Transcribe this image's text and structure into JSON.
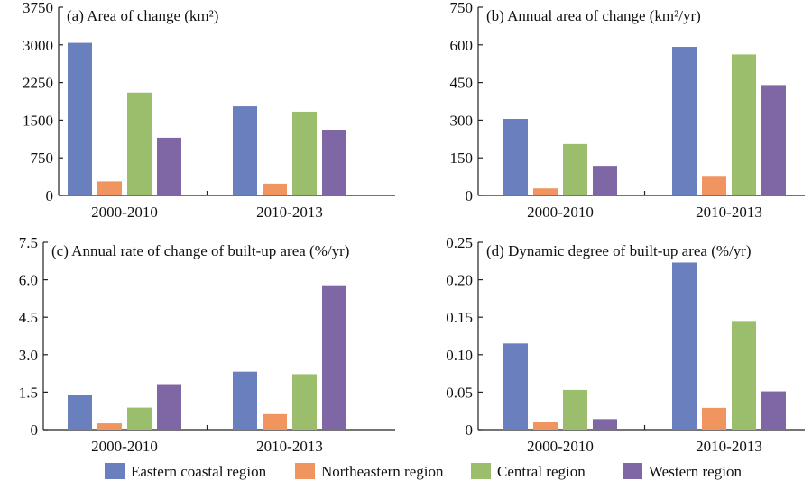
{
  "legend": {
    "placement": "bottom",
    "items": [
      {
        "label": "Eastern coastal region",
        "color": "#6a7fbe"
      },
      {
        "label": "Northeastern region",
        "color": "#f0955f"
      },
      {
        "label": "Central region",
        "color": "#9bbe6c"
      },
      {
        "label": "Western region",
        "color": "#7f66a4"
      }
    ]
  },
  "chart_data": [
    {
      "type": "bar",
      "title": "(a) Area of change (km²)",
      "categories": [
        "2000-2010",
        "2010-2013"
      ],
      "ylim": [
        0,
        3750
      ],
      "yticks": [
        0,
        750,
        1500,
        2250,
        3000,
        3750
      ],
      "ytick_labels": [
        "0",
        "750",
        "1500",
        "2250",
        "3000",
        "3750"
      ],
      "series": [
        {
          "name": "Eastern coastal region",
          "values": [
            3040,
            1775
          ]
        },
        {
          "name": "Northeastern region",
          "values": [
            280,
            235
          ]
        },
        {
          "name": "Central region",
          "values": [
            2050,
            1670
          ]
        },
        {
          "name": "Western region",
          "values": [
            1150,
            1310
          ]
        }
      ]
    },
    {
      "type": "bar",
      "title": "(b) Annual area of change (km²/yr)",
      "categories": [
        "2000-2010",
        "2010-2013"
      ],
      "ylim": [
        0,
        750
      ],
      "yticks": [
        0,
        150,
        300,
        450,
        600,
        750
      ],
      "ytick_labels": [
        "0",
        "150",
        "300",
        "450",
        "600",
        "750"
      ],
      "series": [
        {
          "name": "Eastern coastal region",
          "values": [
            305,
            592
          ]
        },
        {
          "name": "Northeastern region",
          "values": [
            28,
            78
          ]
        },
        {
          "name": "Central region",
          "values": [
            205,
            562
          ]
        },
        {
          "name": "Western region",
          "values": [
            118,
            440
          ]
        }
      ]
    },
    {
      "type": "bar",
      "title": "(c) Annual rate of change of built-up area (%/yr)",
      "categories": [
        "2000-2010",
        "2010-2013"
      ],
      "ylim": [
        0,
        7.5
      ],
      "yticks": [
        0,
        1.5,
        3.0,
        4.5,
        6.0,
        7.5
      ],
      "ytick_labels": [
        "0",
        "1.5",
        "3.0",
        "4.5",
        "6.0",
        "7.5"
      ],
      "series": [
        {
          "name": "Eastern coastal region",
          "values": [
            1.38,
            2.32
          ]
        },
        {
          "name": "Northeastern region",
          "values": [
            0.25,
            0.62
          ]
        },
        {
          "name": "Central region",
          "values": [
            0.88,
            2.22
          ]
        },
        {
          "name": "Western region",
          "values": [
            1.82,
            5.78
          ]
        }
      ]
    },
    {
      "type": "bar",
      "title": "(d) Dynamic degree of built-up area (%/yr)",
      "categories": [
        "2000-2010",
        "2010-2013"
      ],
      "ylim": [
        0,
        0.25
      ],
      "yticks": [
        0,
        0.05,
        0.1,
        0.15,
        0.2,
        0.25
      ],
      "ytick_labels": [
        "0",
        "0.05",
        "0.10",
        "0.15",
        "0.20",
        "0.25"
      ],
      "series": [
        {
          "name": "Eastern coastal region",
          "values": [
            0.115,
            0.223
          ]
        },
        {
          "name": "Northeastern region",
          "values": [
            0.01,
            0.029
          ]
        },
        {
          "name": "Central region",
          "values": [
            0.053,
            0.145
          ]
        },
        {
          "name": "Western region",
          "values": [
            0.014,
            0.051
          ]
        }
      ]
    }
  ]
}
